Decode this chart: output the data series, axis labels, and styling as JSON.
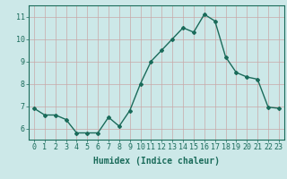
{
  "x": [
    0,
    1,
    2,
    3,
    4,
    5,
    6,
    7,
    8,
    9,
    10,
    11,
    12,
    13,
    14,
    15,
    16,
    17,
    18,
    19,
    20,
    21,
    22,
    23
  ],
  "y": [
    6.9,
    6.6,
    6.6,
    6.4,
    5.8,
    5.8,
    5.8,
    6.5,
    6.1,
    6.8,
    8.0,
    9.0,
    9.5,
    10.0,
    10.5,
    10.3,
    11.1,
    10.8,
    9.2,
    8.5,
    8.3,
    8.2,
    6.95,
    6.9
  ],
  "line_color": "#1a6b5a",
  "marker": "D",
  "marker_size": 2,
  "xlabel": "Humidex (Indice chaleur)",
  "xlim": [
    -0.5,
    23.5
  ],
  "ylim": [
    5.5,
    11.5
  ],
  "yticks": [
    6,
    7,
    8,
    9,
    10,
    11
  ],
  "xticks": [
    0,
    1,
    2,
    3,
    4,
    5,
    6,
    7,
    8,
    9,
    10,
    11,
    12,
    13,
    14,
    15,
    16,
    17,
    18,
    19,
    20,
    21,
    22,
    23
  ],
  "xtick_labels": [
    "0",
    "1",
    "2",
    "3",
    "4",
    "5",
    "6",
    "7",
    "8",
    "9",
    "10",
    "11",
    "12",
    "13",
    "14",
    "15",
    "16",
    "17",
    "18",
    "19",
    "20",
    "21",
    "22",
    "23"
  ],
  "grid_color": "#c8a8a8",
  "bg_color": "#cce8e8",
  "axis_color": "#1a6b5a",
  "xlabel_fontsize": 7,
  "tick_fontsize": 6,
  "linewidth": 1.0
}
